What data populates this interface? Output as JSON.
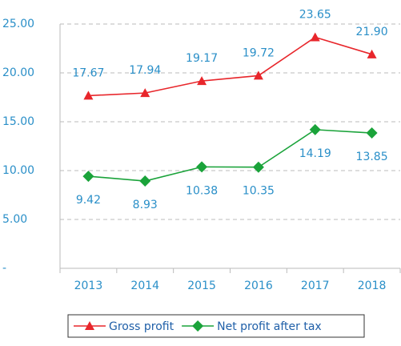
{
  "chart_data": {
    "type": "line",
    "categories": [
      "2013",
      "2014",
      "2015",
      "2016",
      "2017",
      "2018"
    ],
    "series": [
      {
        "name": "Gross profit",
        "color": "#e8262b",
        "marker": "triangle",
        "values": [
          17.67,
          17.94,
          19.17,
          19.72,
          23.65,
          21.9
        ],
        "value_labels": [
          "17.67",
          "17.94",
          "19.17",
          "19.72",
          "23.65",
          "21.90"
        ]
      },
      {
        "name": "Net profit after tax",
        "color": "#1aa33a",
        "marker": "diamond",
        "values": [
          9.42,
          8.93,
          10.38,
          10.35,
          14.19,
          13.85
        ],
        "value_labels": [
          "9.42",
          "8.93",
          "10.38",
          "10.35",
          "14.19",
          "13.85"
        ]
      }
    ],
    "ylim": [
      0,
      25
    ],
    "yticks": [
      {
        "value": 0,
        "label": "-"
      },
      {
        "value": 5,
        "label": "5.00"
      },
      {
        "value": 10,
        "label": "10.00"
      },
      {
        "value": 15,
        "label": "15.00"
      },
      {
        "value": 20,
        "label": "20.00"
      },
      {
        "value": 25,
        "label": "25.00"
      }
    ],
    "grid": true,
    "legend": "bottom"
  }
}
